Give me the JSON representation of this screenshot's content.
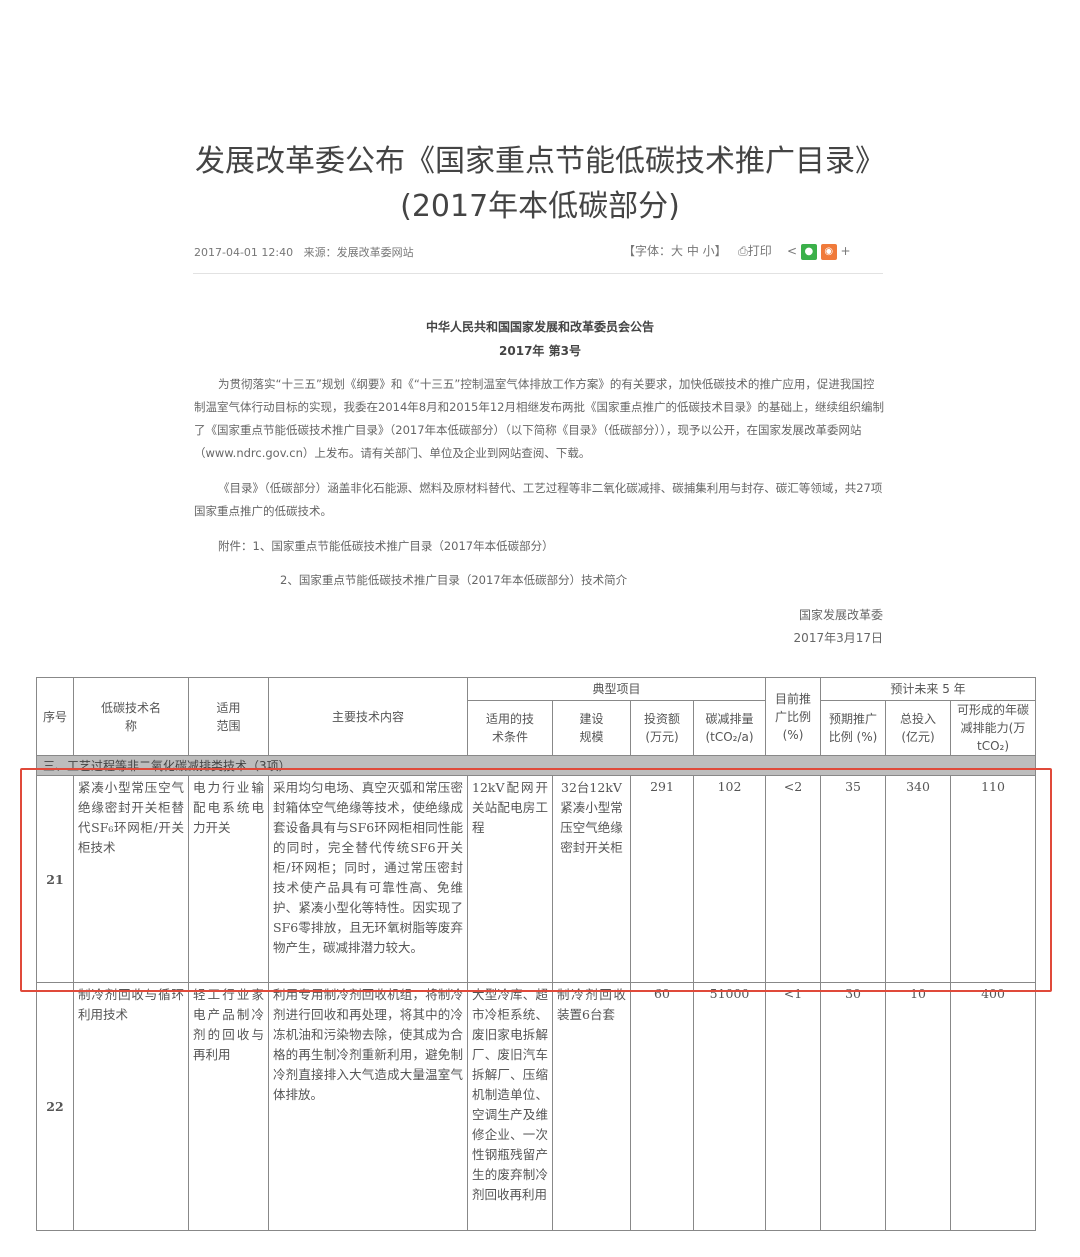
{
  "article": {
    "title_line1": "发展改革委公布《国家重点节能低碳技术推广目录》",
    "title_line2": "(2017年本低碳部分)",
    "datetime": "2017-04-01 12:40",
    "source_label": "来源：",
    "source": "发展改革委网站",
    "font_size_label": "【字体：大 中 小】",
    "print_label": "打印",
    "share_plus": "+"
  },
  "notice": {
    "issuer": "中华人民共和国国家发展和改革委员会公告",
    "number": "2017年  第3号",
    "paragraph1": "为贯彻落实“十三五”规划《纲要》和《“十三五”控制温室气体排放工作方案》的有关要求，加快低碳技术的推广应用，促进我国控制温室气体行动目标的实现，我委在2014年8月和2015年12月相继发布两批《国家重点推广的低碳技术目录》的基础上，继续组织编制了《国家重点节能低碳技术推广目录》（2017年本低碳部分）（以下简称《目录》（低碳部分）），现予以公开，在国家发展改革委网站（www.ndrc.gov.cn）上发布。请有关部门、单位及企业到网站查阅、下载。",
    "paragraph2": "《目录》（低碳部分）涵盖非化石能源、燃料及原材料替代、工艺过程等非二氧化碳减排、碳捕集利用与封存、碳汇等领域，共27项国家重点推广的低碳技术。",
    "attachment1": "附件：1、国家重点节能低碳技术推广目录（2017年本低碳部分）",
    "attachment2": "2、国家重点节能低碳技术推广目录（2017年本低碳部分）技术简介",
    "signature": "国家发展改革委",
    "date": "2017年3月17日"
  },
  "table": {
    "headers": {
      "index": "序号",
      "name": "低碳技术名称",
      "scope": "适用范围",
      "content": "主要技术内容",
      "typical_project": "典型项目",
      "conditions": "适用的技术条件",
      "scale": "建设规模",
      "investment": "投资额(万元)",
      "reduction": "碳减排量(tCO₂/a)",
      "current_ratio": "目前推广比例(%)",
      "forecast": "预计未来 5 年",
      "expected_ratio": "预期推广比例 (%)",
      "total_investment": "总投入(亿元)",
      "capacity": "可形成的年碳减排能力(万 tCO₂)"
    },
    "section": "三、工艺过程等非二氧化碳减排类技术（3项）",
    "rows": [
      {
        "index": "21",
        "name": "紧凑小型常压空气绝缘密封开关柜替代SF₆环网柜/开关柜技术",
        "scope": "电力行业输配电系统电力开关",
        "content": "采用均匀电场、真空灭弧和常压密封箱体空气绝缘等技术，使绝缘成套设备具有与SF6环网柜相同性能的同时，完全替代传统SF6开关柜/环网柜；同时，通过常压密封技术使产品具有可靠性高、免维护、紧凑小型化等特性。因实现了SF6零排放，且无环氧树脂等废弃物产生，碳减排潜力较大。",
        "conditions": "12kV配网开关站配电房工程",
        "scale": "32台12kV紧凑小型常压空气绝缘密封开关柜",
        "investment": "291",
        "reduction": "102",
        "current_ratio": "<2",
        "expected_ratio": "35",
        "total_investment": "340",
        "capacity": "110"
      },
      {
        "index": "22",
        "name": "制冷剂回收与循环利用技术",
        "scope": "轻工行业家电产品制冷剂的回收与再利用",
        "content": "利用专用制冷剂回收机组，将制冷剂进行回收和再处理，将其中的冷冻机油和污染物去除，使其成为合格的再生制冷剂重新利用，避免制冷剂直接排入大气造成大量温室气体排放。",
        "conditions": "大型冷库、超市冷柜系统、废旧家电拆解厂、废旧汽车拆解厂、压缩机制造单位、空调生产及维修企业、一次性钢瓶残留产生的废弃制冷剂回收再利用",
        "scale": "制冷剂回收装置6台套",
        "investment": "60",
        "reduction": "51000",
        "current_ratio": "<1",
        "expected_ratio": "30",
        "total_investment": "10",
        "capacity": "400"
      }
    ]
  },
  "colors": {
    "highlight": "#e04a3a",
    "section_bg": "#bdbdbd",
    "wechat": "#3bb04a",
    "weibo": "#f07a3a"
  }
}
